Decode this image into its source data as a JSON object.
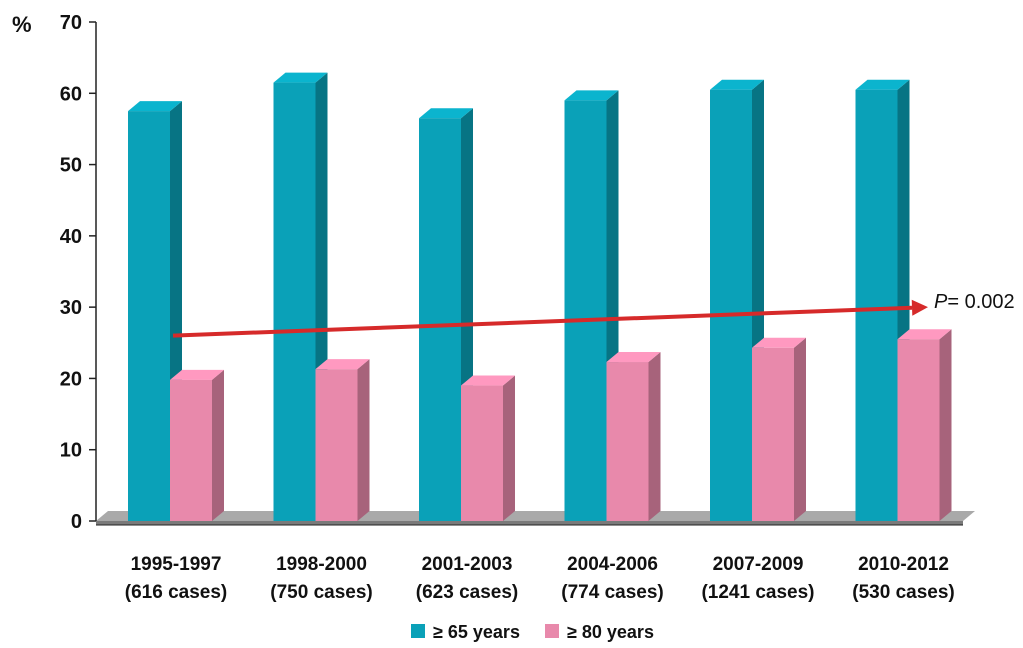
{
  "chart_data": {
    "type": "bar",
    "title": "",
    "xlabel": "",
    "ylabel": "%",
    "ylim": [
      0,
      70
    ],
    "yticks": [
      0,
      10,
      20,
      30,
      40,
      50,
      60,
      70
    ],
    "categories": [
      [
        "1995-1997",
        "(616 cases)"
      ],
      [
        "1998-2000",
        "(750 cases)"
      ],
      [
        "2001-2003",
        "(623 cases)"
      ],
      [
        "2004-2006",
        "(774 cases)"
      ],
      [
        "2007-2009",
        "(1241 cases)"
      ],
      [
        "2010-2012",
        "(530 cases)"
      ]
    ],
    "series": [
      {
        "name": "≥ 65 years",
        "color": "#0aa1b8",
        "values": [
          57.5,
          61.5,
          56.5,
          59,
          60.5,
          60.5
        ]
      },
      {
        "name": "≥ 80 years",
        "color": "#e889ab",
        "values": [
          19.8,
          21.3,
          19,
          22.3,
          24.3,
          25.5
        ]
      }
    ],
    "trend": {
      "color": "#d62a2a",
      "start_value": 26,
      "end_value": 30,
      "label_italic": "P",
      "label_rest": "= 0.002"
    },
    "grid": false,
    "legend_position": "bottom",
    "style": "3d"
  }
}
